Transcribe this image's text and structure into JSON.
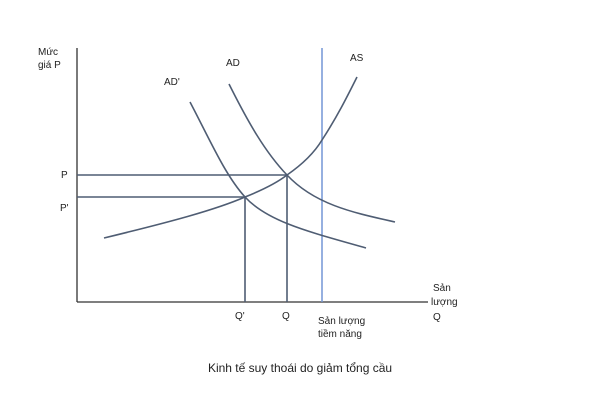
{
  "y_axis": {
    "label": [
      "Mức",
      "giá P"
    ],
    "ticks": [
      "P",
      "P'"
    ]
  },
  "x_axis": {
    "label": [
      "Sản",
      "lượng",
      "Q"
    ],
    "ticks": [
      "Q'",
      "Q"
    ]
  },
  "curves": {
    "ad": "AD",
    "ad_prime": "AD'",
    "as": "AS"
  },
  "potential_output": [
    "Sản lượng",
    "tiềm năng"
  ],
  "caption": "Kinh tế suy thoái do giảm tổng cầu"
}
